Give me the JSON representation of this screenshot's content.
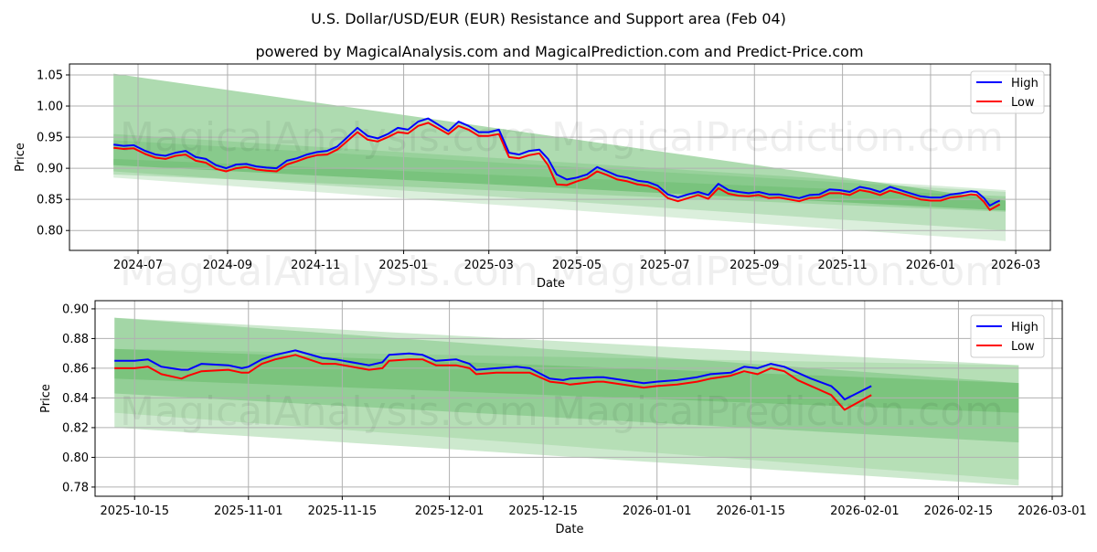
{
  "title": "U.S. Dollar/USD/EUR (EUR) Resistance and Support area (Feb 04)",
  "subtitle": "powered by MagicalAnalysis.com and MagicalPrediction.com and Predict-Price.com",
  "watermarks": [
    "MagicalAnalysis.com",
    "MagicalPrediction.com"
  ],
  "colors": {
    "high": "#0000ff",
    "low": "#ff0000",
    "band": "#4caf50"
  },
  "chart_data": [
    {
      "type": "line",
      "xlabel": "Date",
      "ylabel": "Price",
      "x_unit": "days since 2024-07-01",
      "xlim": [
        -47.5,
        632
      ],
      "ylim": [
        0.768,
        1.0676
      ],
      "grid": true,
      "legend": {
        "placement": "top-right",
        "entries": [
          "High",
          "Low"
        ]
      },
      "xticks": [
        {
          "v": 0,
          "label": "2024-07"
        },
        {
          "v": 62,
          "label": "2024-09"
        },
        {
          "v": 123,
          "label": "2024-11"
        },
        {
          "v": 184,
          "label": "2025-01"
        },
        {
          "v": 243,
          "label": "2025-03"
        },
        {
          "v": 304,
          "label": "2025-05"
        },
        {
          "v": 365,
          "label": "2025-07"
        },
        {
          "v": 427,
          "label": "2025-09"
        },
        {
          "v": 488,
          "label": "2025-11"
        },
        {
          "v": 549,
          "label": "2026-01"
        },
        {
          "v": 608,
          "label": "2026-03"
        }
      ],
      "yticks": [
        {
          "v": 0.8,
          "label": "0.80"
        },
        {
          "v": 0.85,
          "label": "0.85"
        },
        {
          "v": 0.9,
          "label": "0.90"
        },
        {
          "v": 0.95,
          "label": "0.95"
        },
        {
          "v": 1.0,
          "label": "1.00"
        },
        {
          "v": 1.05,
          "label": "1.05"
        }
      ],
      "bands": {
        "x": [
          -17,
          601
        ],
        "areas": [
          {
            "top": [
              1.052,
              0.848
            ],
            "bottom": [
              0.905,
              0.832
            ],
            "opacity": 0.45
          },
          {
            "top": [
              0.955,
              0.865
            ],
            "bottom": [
              0.895,
              0.8
            ],
            "opacity": 0.22
          },
          {
            "top": [
              0.945,
              0.862
            ],
            "bottom": [
              0.885,
              0.783
            ],
            "opacity": 0.2
          },
          {
            "top": [
              0.915,
              0.855
            ],
            "bottom": [
              0.89,
              0.83
            ],
            "opacity": 0.25
          }
        ]
      },
      "x": [
        -17,
        -10,
        -3,
        5,
        12,
        19,
        26,
        33,
        40,
        47,
        54,
        61,
        68,
        75,
        82,
        89,
        96,
        103,
        110,
        117,
        124,
        131,
        138,
        145,
        152,
        159,
        166,
        173,
        180,
        187,
        194,
        201,
        208,
        215,
        222,
        229,
        236,
        243,
        250,
        257,
        264,
        271,
        278,
        284,
        290,
        297,
        304,
        311,
        318,
        325,
        332,
        339,
        346,
        353,
        360,
        367,
        374,
        381,
        388,
        395,
        402,
        409,
        416,
        423,
        430,
        437,
        444,
        451,
        458,
        465,
        472,
        479,
        486,
        493,
        500,
        507,
        514,
        521,
        528,
        535,
        542,
        549,
        556,
        563,
        570,
        577,
        581,
        586,
        590,
        594,
        597
      ],
      "series": [
        {
          "name": "High",
          "values": [
            0.938,
            0.936,
            0.937,
            0.928,
            0.922,
            0.92,
            0.925,
            0.928,
            0.918,
            0.915,
            0.905,
            0.9,
            0.906,
            0.907,
            0.903,
            0.901,
            0.9,
            0.912,
            0.916,
            0.922,
            0.926,
            0.928,
            0.935,
            0.95,
            0.965,
            0.952,
            0.948,
            0.955,
            0.965,
            0.962,
            0.975,
            0.98,
            0.97,
            0.96,
            0.975,
            0.968,
            0.958,
            0.958,
            0.962,
            0.925,
            0.922,
            0.928,
            0.93,
            0.915,
            0.89,
            0.882,
            0.885,
            0.89,
            0.902,
            0.895,
            0.888,
            0.885,
            0.88,
            0.878,
            0.872,
            0.858,
            0.853,
            0.858,
            0.862,
            0.857,
            0.875,
            0.865,
            0.862,
            0.86,
            0.862,
            0.858,
            0.858,
            0.855,
            0.852,
            0.857,
            0.858,
            0.866,
            0.865,
            0.862,
            0.87,
            0.867,
            0.862,
            0.87,
            0.865,
            0.86,
            0.855,
            0.853,
            0.853,
            0.858,
            0.86,
            0.863,
            0.862,
            0.852,
            0.84,
            0.845,
            0.848
          ]
        },
        {
          "name": "Low",
          "values": [
            0.933,
            0.931,
            0.932,
            0.923,
            0.917,
            0.915,
            0.92,
            0.922,
            0.912,
            0.909,
            0.899,
            0.895,
            0.9,
            0.902,
            0.898,
            0.896,
            0.895,
            0.906,
            0.911,
            0.917,
            0.921,
            0.922,
            0.93,
            0.944,
            0.958,
            0.946,
            0.943,
            0.95,
            0.958,
            0.956,
            0.968,
            0.973,
            0.964,
            0.955,
            0.968,
            0.962,
            0.952,
            0.952,
            0.955,
            0.918,
            0.916,
            0.921,
            0.924,
            0.905,
            0.874,
            0.873,
            0.879,
            0.884,
            0.895,
            0.889,
            0.882,
            0.879,
            0.874,
            0.872,
            0.866,
            0.852,
            0.847,
            0.852,
            0.857,
            0.851,
            0.868,
            0.859,
            0.856,
            0.855,
            0.857,
            0.852,
            0.853,
            0.85,
            0.847,
            0.852,
            0.853,
            0.86,
            0.86,
            0.857,
            0.865,
            0.862,
            0.857,
            0.864,
            0.86,
            0.855,
            0.85,
            0.848,
            0.848,
            0.853,
            0.855,
            0.858,
            0.857,
            0.846,
            0.833,
            0.838,
            0.842
          ]
        }
      ]
    },
    {
      "type": "line",
      "xlabel": "Date",
      "ylabel": "Price",
      "x_unit": "days since 2025-10-15",
      "xlim": [
        -5.9,
        138.5
      ],
      "ylim": [
        0.7738,
        0.9055
      ],
      "grid": true,
      "legend": {
        "placement": "top-right",
        "entries": [
          "High",
          "Low"
        ]
      },
      "xticks": [
        {
          "v": 0,
          "label": "2025-10-15"
        },
        {
          "v": 17,
          "label": "2025-11-01"
        },
        {
          "v": 31,
          "label": "2025-11-15"
        },
        {
          "v": 47,
          "label": "2025-12-01"
        },
        {
          "v": 61,
          "label": "2025-12-15"
        },
        {
          "v": 78,
          "label": "2026-01-01"
        },
        {
          "v": 92,
          "label": "2026-01-15"
        },
        {
          "v": 109,
          "label": "2026-02-01"
        },
        {
          "v": 123,
          "label": "2026-02-15"
        },
        {
          "v": 137,
          "label": "2026-03-01"
        }
      ],
      "yticks": [
        {
          "v": 0.78,
          "label": "0.78"
        },
        {
          "v": 0.8,
          "label": "0.80"
        },
        {
          "v": 0.82,
          "label": "0.82"
        },
        {
          "v": 0.84,
          "label": "0.84"
        },
        {
          "v": 0.86,
          "label": "0.86"
        },
        {
          "v": 0.88,
          "label": "0.88"
        },
        {
          "v": 0.9,
          "label": "0.90"
        }
      ],
      "bands": {
        "x": [
          -3,
          132
        ],
        "areas": [
          {
            "top": [
              0.894,
              0.862
            ],
            "bottom": [
              0.82,
              0.781
            ],
            "opacity": 0.28
          },
          {
            "top": [
              0.894,
              0.85
            ],
            "bottom": [
              0.843,
              0.81
            ],
            "opacity": 0.32
          },
          {
            "top": [
              0.873,
              0.85
            ],
            "bottom": [
              0.853,
              0.83
            ],
            "opacity": 0.35
          },
          {
            "top": [
              0.873,
              0.862
            ],
            "bottom": [
              0.83,
              0.785
            ],
            "opacity": 0.18
          }
        ]
      },
      "x": [
        -3,
        0,
        2,
        4,
        7,
        8,
        10,
        14,
        16,
        17,
        19,
        21,
        22,
        24,
        28,
        30,
        35,
        37,
        38,
        41,
        43,
        45,
        48,
        50,
        51,
        54,
        57,
        59,
        62,
        64,
        65,
        69,
        70,
        76,
        78,
        81,
        84,
        86,
        89,
        91,
        93,
        95,
        97,
        99,
        101,
        104,
        105,
        106,
        110
      ],
      "series": [
        {
          "name": "High",
          "values": [
            0.865,
            0.865,
            0.866,
            0.861,
            0.859,
            0.859,
            0.863,
            0.862,
            0.86,
            0.861,
            0.866,
            0.869,
            0.87,
            0.872,
            0.867,
            0.866,
            0.862,
            0.864,
            0.869,
            0.87,
            0.869,
            0.865,
            0.866,
            0.863,
            0.859,
            0.86,
            0.861,
            0.86,
            0.853,
            0.852,
            0.853,
            0.854,
            0.854,
            0.85,
            0.851,
            0.852,
            0.854,
            0.856,
            0.857,
            0.861,
            0.86,
            0.863,
            0.861,
            0.857,
            0.853,
            0.848,
            0.844,
            0.839,
            0.848
          ]
        },
        {
          "name": "Low",
          "values": [
            0.86,
            0.86,
            0.861,
            0.856,
            0.853,
            0.855,
            0.858,
            0.859,
            0.857,
            0.857,
            0.863,
            0.866,
            0.867,
            0.869,
            0.863,
            0.863,
            0.859,
            0.86,
            0.865,
            0.866,
            0.866,
            0.862,
            0.862,
            0.86,
            0.856,
            0.857,
            0.857,
            0.857,
            0.851,
            0.85,
            0.849,
            0.851,
            0.851,
            0.847,
            0.848,
            0.849,
            0.851,
            0.853,
            0.855,
            0.858,
            0.856,
            0.86,
            0.858,
            0.852,
            0.848,
            0.842,
            0.837,
            0.832,
            0.842
          ]
        }
      ]
    }
  ]
}
